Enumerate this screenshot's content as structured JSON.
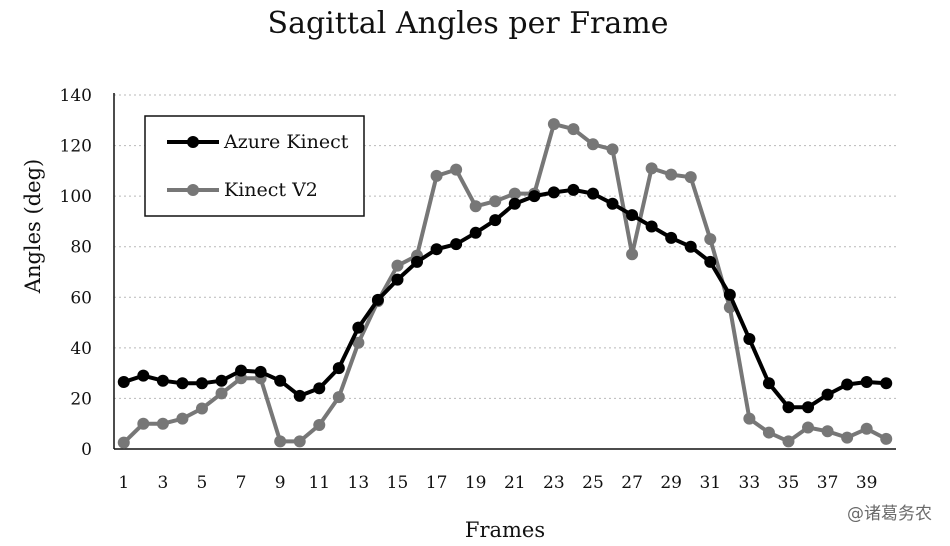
{
  "watermark": "@诸葛务农",
  "chart_data": {
    "type": "line",
    "title": "Sagittal Angles per Frame",
    "xlabel": "Frames",
    "ylabel": "Angles (deg)",
    "ylim": [
      0,
      140
    ],
    "yticks": [
      0,
      20,
      40,
      60,
      80,
      100,
      120,
      140
    ],
    "grid": true,
    "legend": "top-left",
    "x": [
      1,
      2,
      3,
      4,
      5,
      6,
      7,
      8,
      9,
      10,
      11,
      12,
      13,
      14,
      15,
      16,
      17,
      18,
      19,
      20,
      21,
      22,
      23,
      24,
      25,
      26,
      27,
      28,
      29,
      30,
      31,
      32,
      33,
      34,
      35,
      36,
      37,
      38,
      39,
      40
    ],
    "xtick_labels": [
      "1",
      "",
      "3",
      "",
      "5",
      "",
      "7",
      "",
      "9",
      "",
      "11",
      "",
      "13",
      "",
      "15",
      "",
      "17",
      "",
      "19",
      "",
      "21",
      "",
      "23",
      "",
      "25",
      "",
      "27",
      "",
      "29",
      "",
      "31",
      "",
      "33",
      "",
      "35",
      "",
      "37",
      "",
      "39",
      ""
    ],
    "series": [
      {
        "name": "Azure Kinect",
        "color": "#000000",
        "values": [
          26.5,
          29,
          27,
          26,
          26,
          27,
          31,
          30.5,
          27,
          21,
          24,
          32,
          48,
          59,
          67,
          74,
          79,
          81,
          85.5,
          90.5,
          97,
          100,
          101.5,
          102.5,
          101,
          97,
          92.5,
          88,
          83.5,
          80,
          74,
          61,
          43.5,
          26,
          16.5,
          16.5,
          21.5,
          25.5,
          26.5,
          26
        ]
      },
      {
        "name": "Kinect V2",
        "color": "#777777",
        "values": [
          2.5,
          10,
          10,
          12,
          16,
          22,
          28,
          28,
          3,
          3,
          9.5,
          20.5,
          42,
          58.5,
          72.5,
          76.5,
          108,
          110.5,
          96,
          98,
          101,
          101,
          128.5,
          126.5,
          120.5,
          118.5,
          77,
          111,
          108.5,
          107.5,
          83,
          56,
          12,
          6.5,
          3,
          8.5,
          7,
          4.5,
          8,
          4
        ]
      }
    ]
  }
}
